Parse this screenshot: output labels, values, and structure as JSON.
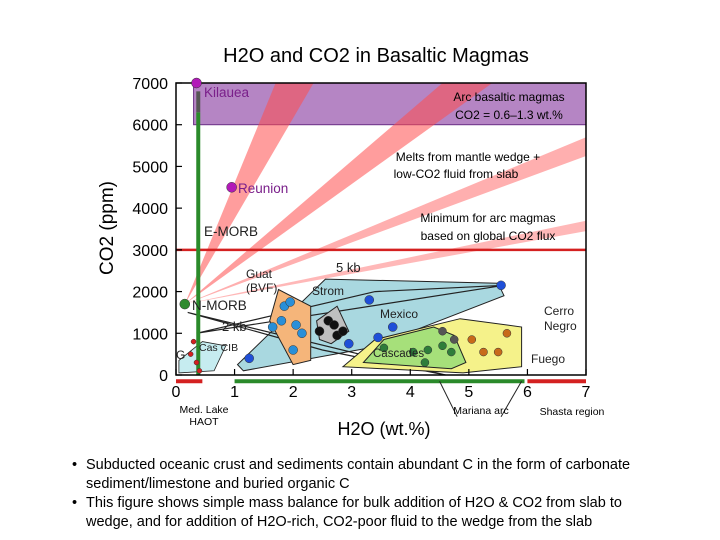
{
  "chart_data": {
    "type": "scatter",
    "title": "H2O and CO2 in Basaltic Magmas",
    "xlabel": "H2O (wt.%)",
    "ylabel": "CO2 (ppm)",
    "xlim": [
      0,
      7
    ],
    "ylim": [
      0,
      7000
    ],
    "x_ticks": [
      0,
      1,
      2,
      3,
      4,
      5,
      6,
      7
    ],
    "y_ticks": [
      0,
      1000,
      2000,
      3000,
      4000,
      5000,
      6000,
      7000
    ],
    "annotations": {
      "arc_box_line1": "Arc basaltic magmas",
      "arc_box_line2": "CO2 = 0.6–1.3 wt.%",
      "melts_line1": "Melts from mantle wedge +",
      "melts_line2": "low-CO2 fluid from slab",
      "minimum_line1": "Minimum for arc magmas",
      "minimum_line2": "based on global CO2 flux",
      "kb5": "5 kb",
      "kb2": "2 kb",
      "mariana": "Mariana arc",
      "shasta": "Shasta region",
      "med_lake1": "Med. Lake",
      "med_lake2": "HAOT"
    },
    "labels": {
      "kilauea": "Kilauea",
      "reunion": "Reunion",
      "emorb": "E-MORB",
      "nmorb": "N-MORB",
      "guat1": "Guat",
      "guat2": "(BVF)",
      "strom": "Strom",
      "mexico": "Mexico",
      "cerro1": "Cerro",
      "cerro2": "Negro",
      "cascades": "Cascades",
      "fuego": "Fuego",
      "cascib": "Cas CIB",
      "g": "G"
    },
    "minimum_co2_ppm": 3000,
    "arc_co2_range_ppm": [
      6000,
      7000
    ],
    "points": {
      "kilauea": [
        {
          "x": 0.35,
          "y": 7000
        }
      ],
      "reunion": [
        {
          "x": 0.95,
          "y": 4500
        }
      ],
      "nmorb": [
        {
          "x": 0.15,
          "y": 1700
        }
      ],
      "guatemala": [
        {
          "x": 1.65,
          "y": 1150
        },
        {
          "x": 1.85,
          "y": 1650
        },
        {
          "x": 2.05,
          "y": 1200
        },
        {
          "x": 1.8,
          "y": 1300
        },
        {
          "x": 2.15,
          "y": 1000
        },
        {
          "x": 2.0,
          "y": 600
        },
        {
          "x": 1.95,
          "y": 1750
        }
      ],
      "stromboli": [
        {
          "x": 2.45,
          "y": 1050
        },
        {
          "x": 2.6,
          "y": 1300
        },
        {
          "x": 2.75,
          "y": 950
        },
        {
          "x": 2.85,
          "y": 1050
        },
        {
          "x": 2.7,
          "y": 1200
        }
      ],
      "mexico": [
        {
          "x": 1.25,
          "y": 400
        },
        {
          "x": 2.95,
          "y": 750
        },
        {
          "x": 3.3,
          "y": 1800
        },
        {
          "x": 3.7,
          "y": 1150
        },
        {
          "x": 3.45,
          "y": 900
        },
        {
          "x": 5.55,
          "y": 2150
        }
      ],
      "cascades": [
        {
          "x": 3.55,
          "y": 650
        },
        {
          "x": 4.05,
          "y": 550
        },
        {
          "x": 4.3,
          "y": 600
        },
        {
          "x": 4.55,
          "y": 700
        },
        {
          "x": 4.7,
          "y": 550
        },
        {
          "x": 4.25,
          "y": 300
        }
      ],
      "cerro_negro": [
        {
          "x": 4.55,
          "y": 1050
        },
        {
          "x": 4.75,
          "y": 850
        }
      ],
      "fuego": [
        {
          "x": 5.05,
          "y": 850
        },
        {
          "x": 5.25,
          "y": 550
        },
        {
          "x": 5.5,
          "y": 550
        },
        {
          "x": 5.65,
          "y": 1000
        }
      ],
      "cas_cib": [
        {
          "x": 0.3,
          "y": 800
        },
        {
          "x": 0.25,
          "y": 500
        },
        {
          "x": 0.35,
          "y": 300
        },
        {
          "x": 0.4,
          "y": 100
        }
      ]
    }
  },
  "text": {
    "bullet1_a": "Subducted oceanic crust and sediments contain abundant C in the form of carbonate",
    "bullet1_b": "sediment/limestone and buried organic C",
    "bullet2_a": "This figure shows simple mass balance for bulk addition of H2O & CO2 from slab to",
    "bullet2_b": "wedge, and for addition of H2O-rich, CO2-poor fluid to the wedge from the slab",
    "bullet_mark": "•"
  }
}
